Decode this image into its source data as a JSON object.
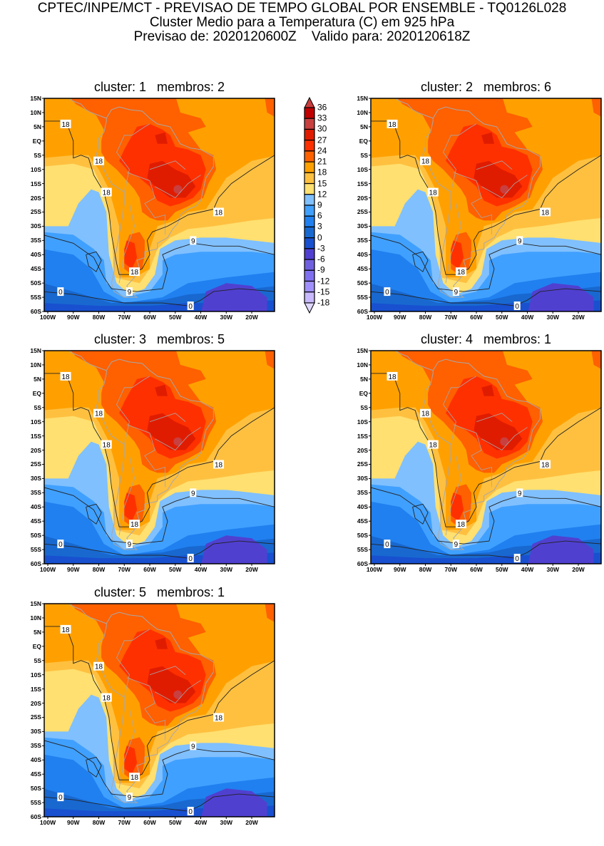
{
  "header": {
    "line1": "CPTEC/INPE/MCT - PREVISAO DE TEMPO GLOBAL POR ENSEMBLE - TQ0126L028",
    "line2": "Cluster Medio para a Temperatura (C) em 925 hPa",
    "line3": "Previsao de: 2020120600Z    Valido para: 2020120618Z"
  },
  "panels": [
    {
      "title": "cluster: 1   membros: 2",
      "contour_labels": [
        "18",
        "18",
        "18",
        "18",
        "18",
        "9",
        "9",
        "0",
        "0"
      ]
    },
    {
      "title": "cluster: 2   membros: 6",
      "contour_labels": [
        "18",
        "18",
        "18",
        "18",
        "18",
        "9",
        "9",
        "0",
        "0"
      ]
    },
    {
      "title": "cluster: 3   membros: 5",
      "contour_labels": [
        "18",
        "18",
        "18",
        "18",
        "18",
        "9",
        "9",
        "0",
        "0"
      ]
    },
    {
      "title": "cluster: 4   membros: 1",
      "contour_labels": [
        "18",
        "18",
        "18",
        "18",
        "18",
        "9",
        "9",
        "0",
        "0"
      ]
    },
    {
      "title": "cluster: 5   membros: 1",
      "contour_labels": [
        "18",
        "18",
        "18",
        "18",
        "18",
        "9",
        "9",
        "0",
        "0"
      ]
    }
  ],
  "axes": {
    "lat_labels": [
      "15N",
      "10N",
      "5N",
      "EQ",
      "5S",
      "10S",
      "15S",
      "20S",
      "25S",
      "30S",
      "35S",
      "40S",
      "45S",
      "50S",
      "55S",
      "60S"
    ],
    "lon_labels": [
      "100W",
      "90W",
      "80W",
      "70W",
      "60W",
      "50W",
      "40W",
      "30W",
      "20W"
    ]
  },
  "colorbar": {
    "labels": [
      "36",
      "33",
      "30",
      "27",
      "24",
      "21",
      "18",
      "15",
      "12",
      "9",
      "6",
      "3",
      "0",
      "-3",
      "-6",
      "-9",
      "-12",
      "-15",
      "-18"
    ],
    "colors": [
      "#c83c3c",
      "#c00000",
      "#c84040",
      "#e01c00",
      "#ff3000",
      "#ff6000",
      "#ffa000",
      "#ffc040",
      "#ffe070",
      "#80c0ff",
      "#40a0ff",
      "#2080f0",
      "#1868d0",
      "#1850d0",
      "#5040d0",
      "#7060e0",
      "#8070f0",
      "#a090ff",
      "#c8b8ff",
      "#e0d8ff"
    ]
  }
}
